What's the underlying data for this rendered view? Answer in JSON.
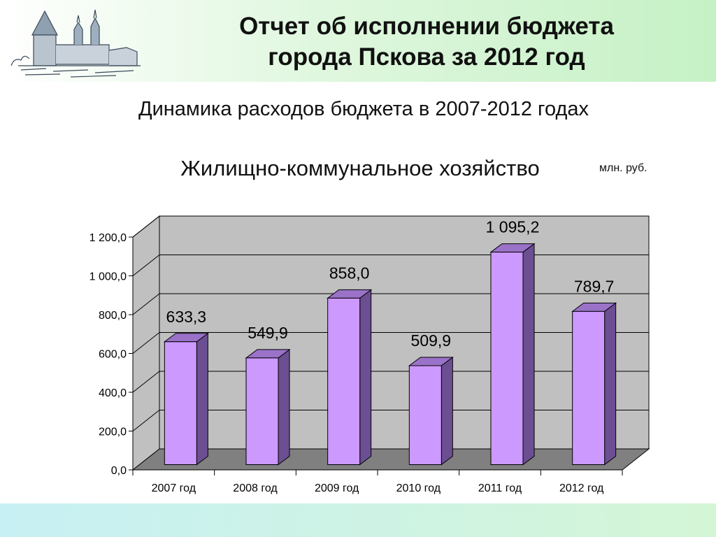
{
  "header": {
    "title_line1": "Отчет об исполнении бюджета",
    "title_line2": "города Пскова за 2012 год",
    "logo_icon": "pskov-kremlin-drawing-icon"
  },
  "subtitle": "Динамика расходов бюджета в 2007-2012 годах",
  "section_title": "Жилищно-коммунальное хозяйство",
  "unit_label": "млн. руб.",
  "chart_data": {
    "type": "bar",
    "categories": [
      "2007 год",
      "2008 год",
      "2009 год",
      "2010 год",
      "2011 год",
      "2012 год"
    ],
    "values": [
      633.3,
      549.9,
      858.0,
      509.9,
      1095.2,
      789.7
    ],
    "value_labels": [
      "633,3",
      "549,9",
      "858,0",
      "509,9",
      "1 095,2",
      "789,7"
    ],
    "ylim": [
      0,
      1200
    ],
    "yticks": [
      0,
      200,
      400,
      600,
      800,
      1000,
      1200
    ],
    "ytick_labels": [
      "0,0",
      "200,0",
      "400,0",
      "600,0",
      "800,0",
      "1 000,0",
      "1 200,0"
    ],
    "grid": true,
    "three_d": true,
    "colors": {
      "bar_front": "#cc99ff",
      "bar_side": "#6b4f92",
      "bar_top": "#9a72c8",
      "wall": "#c0c0c0",
      "floor": "#808080"
    }
  }
}
